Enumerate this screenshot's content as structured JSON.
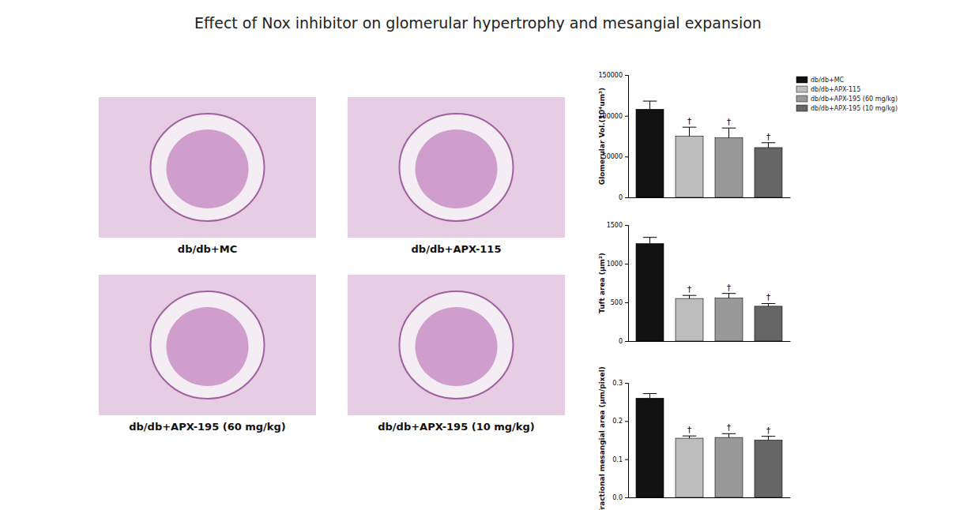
{
  "title": "Effect of Nox inhibitor on glomerular hypertrophy and mesangial expansion",
  "panels": [
    "db/db+MC",
    "db/db+APX-115",
    "db/db+APX-195 (60 mg/kg)",
    "db/db+APX-195 (10 mg/kg)"
  ],
  "chart_data": [
    {
      "type": "bar",
      "y_label": "Glomerular Vol.(10⁴um³)",
      "categories": [
        null
      ],
      "ylim": [
        0,
        150000
      ],
      "yticks": [
        0,
        50000,
        100000,
        150000
      ],
      "tick_labels": "y",
      "legend": "top-right",
      "annotations": [
        null,
        "†",
        "†",
        "†"
      ],
      "series": [
        {
          "name": "db/db+MC",
          "color": "#111111",
          "values": [
            108000
          ],
          "errors": [
            10000
          ]
        },
        {
          "name": "db/db+APX-115",
          "color": "#bdbdbd",
          "values": [
            75000
          ],
          "errors": [
            11000
          ]
        },
        {
          "name": "db/db+APX-195 (60 mg/kg)",
          "color": "#999999",
          "values": [
            73000
          ],
          "errors": [
            12000
          ]
        },
        {
          "name": "db/db+APX-195 (10 mg/kg)",
          "color": "#666666",
          "values": [
            61000
          ],
          "errors": [
            6000
          ]
        }
      ]
    },
    {
      "type": "bar",
      "y_label": "Tuft area (μm²)",
      "categories": [
        null
      ],
      "ylim": [
        0,
        1500
      ],
      "yticks": [
        0,
        500,
        1000,
        1500
      ],
      "tick_labels": "y",
      "annotations": [
        null,
        "†",
        "†",
        "†"
      ],
      "series": [
        {
          "color": "#111111",
          "values": [
            1260
          ],
          "errors": [
            80
          ]
        },
        {
          "color": "#bdbdbd",
          "values": [
            550
          ],
          "errors": [
            40
          ]
        },
        {
          "color": "#999999",
          "values": [
            555
          ],
          "errors": [
            60
          ]
        },
        {
          "color": "#666666",
          "values": [
            450
          ],
          "errors": [
            35
          ]
        }
      ]
    },
    {
      "type": "bar",
      "y_label": "Fractional mesangial area (μm/pixel)",
      "categories": [
        null
      ],
      "ylim": [
        0,
        0.3
      ],
      "yticks": [
        {
          "value": 0,
          "label": "0.0"
        },
        0.1,
        0.2,
        0.3
      ],
      "tick_labels": "y",
      "annotations": [
        null,
        "†",
        "†",
        "†"
      ],
      "series": [
        {
          "color": "#111111",
          "values": [
            0.26
          ],
          "errors": [
            0.012
          ]
        },
        {
          "color": "#bdbdbd",
          "values": [
            0.155
          ],
          "errors": [
            0.006
          ]
        },
        {
          "color": "#999999",
          "values": [
            0.157
          ],
          "errors": [
            0.01
          ]
        },
        {
          "color": "#666666",
          "values": [
            0.15
          ],
          "errors": [
            0.01
          ]
        }
      ]
    }
  ]
}
